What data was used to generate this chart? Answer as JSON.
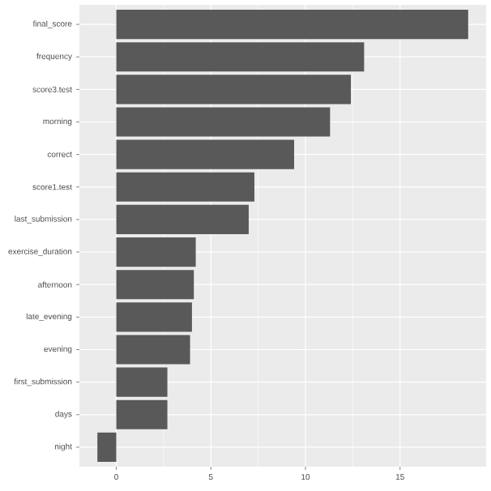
{
  "chart_data": {
    "type": "bar",
    "orientation": "horizontal",
    "categories": [
      "final_score",
      "frequency",
      "score3.test",
      "morning",
      "correct",
      "score1.test",
      "last_submission",
      "exercise_duration",
      "afternoon",
      "late_evening",
      "evening",
      "first_submission",
      "days",
      "night"
    ],
    "values": [
      18.6,
      13.1,
      12.4,
      11.3,
      9.4,
      7.3,
      7.0,
      4.2,
      4.1,
      4.0,
      3.9,
      2.7,
      2.7,
      -1.0
    ],
    "color": "#595959",
    "xlim": [
      -1.95,
      19.55
    ],
    "xticks": [
      0,
      5,
      10,
      15
    ],
    "grid": true
  }
}
